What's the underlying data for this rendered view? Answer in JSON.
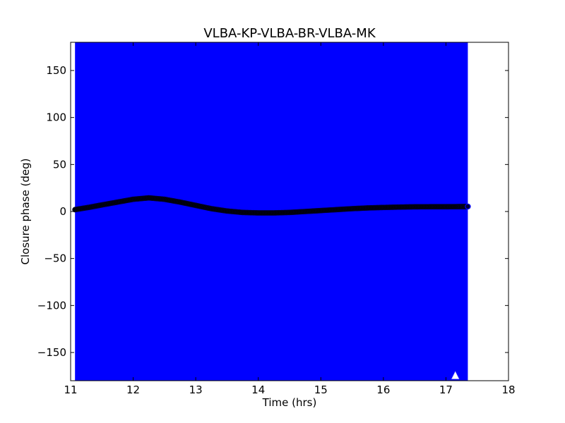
{
  "chart_data": {
    "type": "scatter",
    "title": "VLBA-KP-VLBA-BR-VLBA-MK",
    "xlabel": "Time (hrs)",
    "ylabel": "Closure phase (deg)",
    "xlim": [
      11,
      18
    ],
    "ylim": [
      -180,
      180
    ],
    "xticks": [
      11,
      12,
      13,
      14,
      15,
      16,
      17,
      18
    ],
    "yticks": [
      -150,
      -100,
      -50,
      0,
      50,
      100,
      150
    ],
    "grid": false,
    "series": [
      {
        "role": "error bars (fill entire y range)",
        "color": "#0000ff",
        "x_range": [
          11.07,
          17.35
        ],
        "y_range": [
          -180,
          180
        ]
      },
      {
        "role": "closure phase points",
        "color": "#000000",
        "marker": "circle",
        "x": [
          11.07,
          11.3,
          11.5,
          11.75,
          12.0,
          12.25,
          12.5,
          12.75,
          13.0,
          13.25,
          13.5,
          13.75,
          14.0,
          14.25,
          14.5,
          14.75,
          15.0,
          15.25,
          15.5,
          15.75,
          16.0,
          16.25,
          16.5,
          16.75,
          17.0,
          17.2,
          17.35
        ],
        "y": [
          2,
          4.5,
          7,
          10,
          13,
          14.5,
          13,
          10,
          6.5,
          3,
          0.5,
          -1,
          -1.5,
          -1.5,
          -1,
          0,
          1,
          2,
          3,
          3.8,
          4.3,
          4.7,
          5,
          5.1,
          5.1,
          5.2,
          5.3
        ]
      },
      {
        "role": "flagged point",
        "color": "#ffffff",
        "marker": "triangle",
        "x": [
          17.15
        ],
        "y": [
          -175
        ]
      }
    ]
  }
}
